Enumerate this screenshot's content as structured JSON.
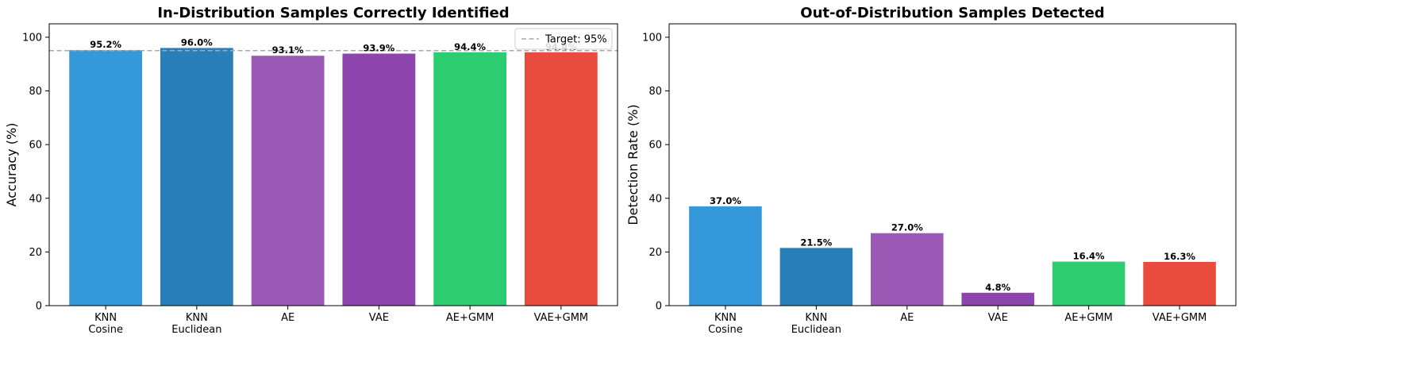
{
  "chart_data": [
    {
      "type": "bar",
      "title": "In-Distribution Samples Correctly Identified",
      "xlabel": "",
      "ylabel": "Accuracy (%)",
      "ylim": [
        0,
        105
      ],
      "yticks": [
        0,
        20,
        40,
        60,
        80,
        100
      ],
      "grid": false,
      "categories": [
        "KNN\nCosine",
        "KNN\nEuclidean",
        "AE",
        "VAE",
        "AE+GMM",
        "VAE+GMM"
      ],
      "values": [
        95.2,
        96.0,
        93.1,
        93.9,
        94.4,
        94.4
      ],
      "value_labels": [
        "95.2%",
        "96.0%",
        "93.1%",
        "93.9%",
        "94.4%",
        "94.4%"
      ],
      "colors": [
        "#3498db",
        "#2980b9",
        "#9b59b6",
        "#8e44ad",
        "#2ecc71",
        "#e74c3c"
      ],
      "reference_line": {
        "value": 95,
        "label": "Target: 95%",
        "color": "#aaaaaa",
        "style": "dashed"
      },
      "legend": {
        "position": "top-right",
        "entries": [
          "Target: 95%"
        ]
      }
    },
    {
      "type": "bar",
      "title": "Out-of-Distribution Samples Detected",
      "xlabel": "",
      "ylabel": "Detection Rate (%)",
      "ylim": [
        0,
        105
      ],
      "yticks": [
        0,
        20,
        40,
        60,
        80,
        100
      ],
      "grid": false,
      "categories": [
        "KNN\nCosine",
        "KNN\nEuclidean",
        "AE",
        "VAE",
        "AE+GMM",
        "VAE+GMM"
      ],
      "values": [
        37.0,
        21.5,
        27.0,
        4.8,
        16.4,
        16.3
      ],
      "value_labels": [
        "37.0%",
        "21.5%",
        "27.0%",
        "4.8%",
        "16.4%",
        "16.3%"
      ],
      "colors": [
        "#3498db",
        "#2980b9",
        "#9b59b6",
        "#8e44ad",
        "#2ecc71",
        "#e74c3c"
      ]
    }
  ]
}
